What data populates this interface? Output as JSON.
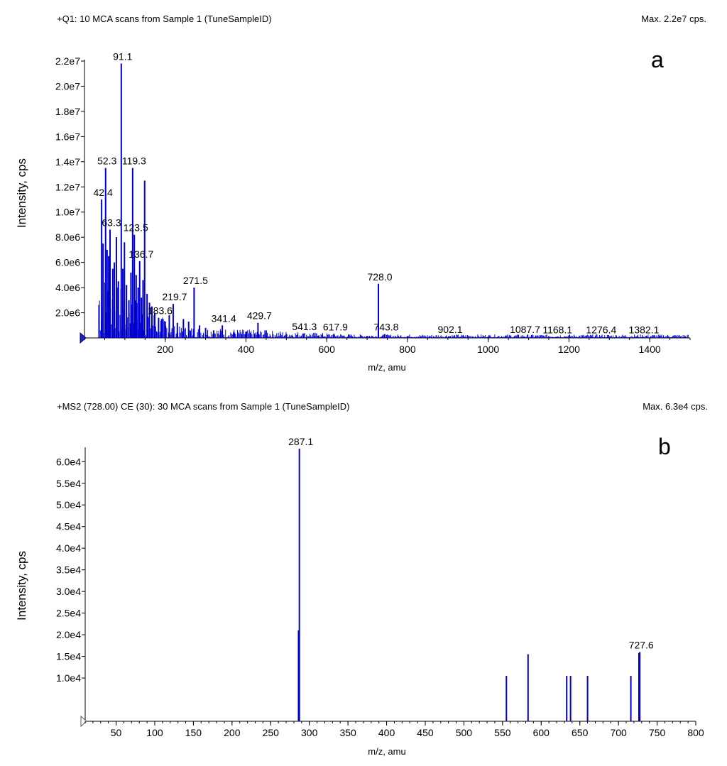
{
  "chart_data": [
    {
      "type": "bar",
      "panel_label": "a",
      "header_left": "+Q1: 10 MCA scans from Sample 1 (TuneSampleID)",
      "header_right": "Max. 2.2e7 cps.",
      "xlabel": "m/z, amu",
      "ylabel": "Intensity, cps",
      "xlim": [
        0,
        1500
      ],
      "ylim": [
        0,
        22000000
      ],
      "x_ticks": [
        200,
        400,
        600,
        800,
        1000,
        1200,
        1400
      ],
      "y_ticks": [
        {
          "value": 2000000,
          "label": "2.0e6"
        },
        {
          "value": 4000000,
          "label": "4.0e6"
        },
        {
          "value": 6000000,
          "label": "6.0e6"
        },
        {
          "value": 8000000,
          "label": "8.0e6"
        },
        {
          "value": 10000000,
          "label": "1.0e7"
        },
        {
          "value": 12000000,
          "label": "1.2e7"
        },
        {
          "value": 14000000,
          "label": "1.4e7"
        },
        {
          "value": 16000000,
          "label": "1.6e7"
        },
        {
          "value": 18000000,
          "label": "1.8e7"
        },
        {
          "value": 20000000,
          "label": "2.0e7"
        },
        {
          "value": 22000000,
          "label": "2.2e7"
        }
      ],
      "peaks": [
        {
          "x": 42.4,
          "y": 11000000,
          "label": "42.4"
        },
        {
          "x": 46.0,
          "y": 7500000
        },
        {
          "x": 52.3,
          "y": 13500000,
          "label": "52.3"
        },
        {
          "x": 56.0,
          "y": 7000000
        },
        {
          "x": 60.0,
          "y": 6500000
        },
        {
          "x": 63.3,
          "y": 8600000,
          "label": "63.3"
        },
        {
          "x": 70.0,
          "y": 5500000
        },
        {
          "x": 74.0,
          "y": 6000000
        },
        {
          "x": 79.0,
          "y": 8000000
        },
        {
          "x": 84.0,
          "y": 4500000
        },
        {
          "x": 91.1,
          "y": 21800000,
          "label": "91.1"
        },
        {
          "x": 95.0,
          "y": 5500000
        },
        {
          "x": 99.0,
          "y": 7600000
        },
        {
          "x": 104.0,
          "y": 4200000
        },
        {
          "x": 110.0,
          "y": 3000000
        },
        {
          "x": 115.0,
          "y": 5200000
        },
        {
          "x": 119.3,
          "y": 13500000,
          "label": "119.3"
        },
        {
          "x": 123.5,
          "y": 8200000,
          "label": "123.5"
        },
        {
          "x": 128.0,
          "y": 5000000
        },
        {
          "x": 133.0,
          "y": 4000000
        },
        {
          "x": 136.7,
          "y": 6100000,
          "label": "136.7"
        },
        {
          "x": 141.0,
          "y": 3200000
        },
        {
          "x": 145.0,
          "y": 4600000
        },
        {
          "x": 149.0,
          "y": 12500000
        },
        {
          "x": 155.0,
          "y": 3500000
        },
        {
          "x": 161.0,
          "y": 2800000
        },
        {
          "x": 167.0,
          "y": 2500000
        },
        {
          "x": 174.0,
          "y": 2000000
        },
        {
          "x": 183.6,
          "y": 1600000,
          "label": "183.6"
        },
        {
          "x": 191.0,
          "y": 1500000
        },
        {
          "x": 200.0,
          "y": 1300000
        },
        {
          "x": 210.0,
          "y": 1800000
        },
        {
          "x": 219.7,
          "y": 2700000,
          "label": "219.7"
        },
        {
          "x": 230.0,
          "y": 1200000
        },
        {
          "x": 245.0,
          "y": 1500000
        },
        {
          "x": 258.0,
          "y": 1300000
        },
        {
          "x": 271.5,
          "y": 4000000,
          "label": "271.5"
        },
        {
          "x": 285.0,
          "y": 1000000
        },
        {
          "x": 300.0,
          "y": 800000
        },
        {
          "x": 320.0,
          "y": 600000
        },
        {
          "x": 341.4,
          "y": 1000000,
          "label": "341.4"
        },
        {
          "x": 370.0,
          "y": 500000
        },
        {
          "x": 400.0,
          "y": 500000
        },
        {
          "x": 429.7,
          "y": 1200000,
          "label": "429.7"
        },
        {
          "x": 450.0,
          "y": 600000
        },
        {
          "x": 500.0,
          "y": 300000
        },
        {
          "x": 541.3,
          "y": 350000,
          "label": "541.3"
        },
        {
          "x": 580.0,
          "y": 200000
        },
        {
          "x": 617.9,
          "y": 300000,
          "label": "617.9"
        },
        {
          "x": 660.0,
          "y": 150000
        },
        {
          "x": 700.0,
          "y": 150000
        },
        {
          "x": 728.0,
          "y": 4300000,
          "label": "728.0"
        },
        {
          "x": 743.8,
          "y": 300000,
          "label": "743.8"
        },
        {
          "x": 800.0,
          "y": 120000
        },
        {
          "x": 902.1,
          "y": 120000,
          "label": "902.1"
        },
        {
          "x": 1000.0,
          "y": 100000
        },
        {
          "x": 1087.7,
          "y": 100000,
          "label": "1087.7"
        },
        {
          "x": 1168.1,
          "y": 90000,
          "label": "1168.1"
        },
        {
          "x": 1276.4,
          "y": 90000,
          "label": "1276.4"
        },
        {
          "x": 1382.1,
          "y": 80000,
          "label": "1382.1"
        }
      ],
      "color": "#0000CC"
    },
    {
      "type": "bar",
      "panel_label": "b",
      "header_left": "+MS2 (728.00) CE (30): 30 MCA scans from Sample 1 (TuneSampleID)",
      "header_right": "Max. 6.3e4 cps.",
      "xlabel": "m/z, amu",
      "ylabel": "Intensity, cps",
      "xlim": [
        10,
        800
      ],
      "ylim": [
        0,
        63000
      ],
      "x_ticks": [
        50,
        100,
        150,
        200,
        250,
        300,
        350,
        400,
        450,
        500,
        550,
        600,
        650,
        700,
        750,
        800
      ],
      "y_ticks": [
        {
          "value": 10000,
          "label": "1.0e4"
        },
        {
          "value": 15000,
          "label": "1.5e4"
        },
        {
          "value": 20000,
          "label": "2.0e4"
        },
        {
          "value": 25000,
          "label": "2.5e4"
        },
        {
          "value": 30000,
          "label": "3.0e4"
        },
        {
          "value": 35000,
          "label": "3.5e4"
        },
        {
          "value": 40000,
          "label": "4.0e4"
        },
        {
          "value": 45000,
          "label": "4.5e4"
        },
        {
          "value": 50000,
          "label": "5.0e4"
        },
        {
          "value": 55000,
          "label": "5.5e4"
        },
        {
          "value": 60000,
          "label": "6.0e4"
        }
      ],
      "peaks": [
        {
          "x": 286.0,
          "y": 21000
        },
        {
          "x": 287.1,
          "y": 63000,
          "label": "287.1"
        },
        {
          "x": 555.0,
          "y": 10500
        },
        {
          "x": 583.0,
          "y": 15500
        },
        {
          "x": 633.0,
          "y": 10500
        },
        {
          "x": 638.0,
          "y": 10500
        },
        {
          "x": 660.0,
          "y": 10500
        },
        {
          "x": 716.0,
          "y": 10500
        },
        {
          "x": 726.5,
          "y": 15800
        },
        {
          "x": 727.6,
          "y": 16000,
          "label": "727.6"
        }
      ],
      "color": "#0000CC"
    }
  ]
}
